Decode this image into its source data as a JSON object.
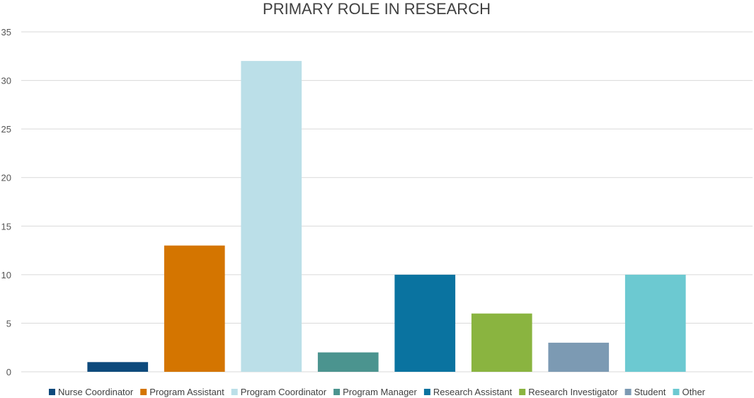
{
  "chart_data": {
    "type": "bar",
    "title": "PRIMARY ROLE IN RESEARCH",
    "xlabel": "",
    "ylabel": "",
    "ylim": [
      0,
      35
    ],
    "yticks": [
      0,
      5,
      10,
      15,
      20,
      25,
      30,
      35
    ],
    "grid": true,
    "legend_position": "bottom",
    "series": [
      {
        "name": "Nurse Coordinator",
        "value": 1,
        "color": "#0e4a7c"
      },
      {
        "name": "Program Assistant",
        "value": 13,
        "color": "#d47500"
      },
      {
        "name": "Program Coordinator",
        "value": 32,
        "color": "#bbdfe8"
      },
      {
        "name": "Program Manager",
        "value": 2,
        "color": "#4b948f"
      },
      {
        "name": "Research Assistant",
        "value": 10,
        "color": "#0a73a0"
      },
      {
        "name": "Research Investigator",
        "value": 6,
        "color": "#8ab440"
      },
      {
        "name": "Student",
        "value": 3,
        "color": "#7c9ab3"
      },
      {
        "name": "Other",
        "value": 10,
        "color": "#6cc9d1"
      }
    ]
  }
}
